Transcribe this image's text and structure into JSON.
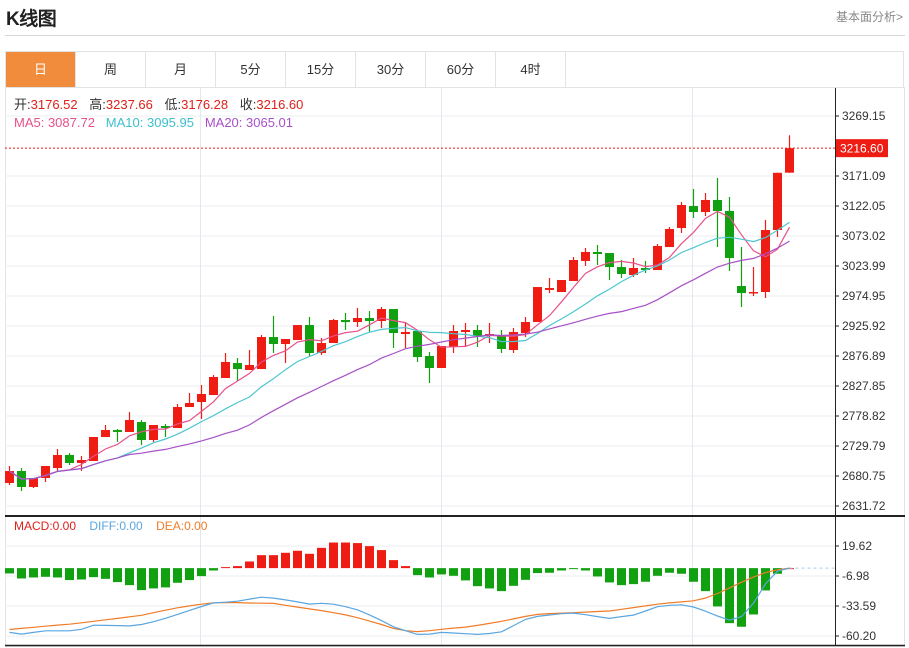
{
  "header": {
    "title": "K线图",
    "more_link": "基本面分析>"
  },
  "tabs": [
    {
      "label": "日",
      "active": true
    },
    {
      "label": "周",
      "active": false
    },
    {
      "label": "月",
      "active": false
    },
    {
      "label": "5分",
      "active": false
    },
    {
      "label": "15分",
      "active": false
    },
    {
      "label": "30分",
      "active": false
    },
    {
      "label": "60分",
      "active": false
    },
    {
      "label": "4时",
      "active": false
    }
  ],
  "info": {
    "open_label": "开:",
    "open": "3176.52",
    "high_label": "高:",
    "high": "3237.66",
    "low_label": "低:",
    "low": "3176.28",
    "close_label": "收:",
    "close": "3216.60",
    "ma5": "MA5: 3087.72",
    "ma10": "MA10: 3095.95",
    "ma20": "MA20: 3065.01"
  },
  "macd_legend": {
    "macd": "MACD:0.00",
    "diff": "DIFF:0.00",
    "dea": "DEA:0.00"
  },
  "colors": {
    "up": "#ee1c12",
    "down": "#10a010",
    "ma5": "#e8508a",
    "ma10": "#4cc6d0",
    "ma20": "#a850c8",
    "diff": "#5aa6e0",
    "dea": "#f07c28",
    "accent": "#f08c3c"
  },
  "chart_data": [
    {
      "type": "candlestick",
      "ohlc_order": [
        "open",
        "high",
        "low",
        "close"
      ],
      "ohlc": [
        [
          2669.3,
          2697.1,
          2666.0,
          2688.9
        ],
        [
          2688.9,
          2693.8,
          2656.2,
          2662.8
        ],
        [
          2662.8,
          2677.5,
          2661.1,
          2677.5
        ],
        [
          2677.5,
          2697.1,
          2670.9,
          2697.1
        ],
        [
          2693.8,
          2724.9,
          2688.9,
          2715.1
        ],
        [
          2715.1,
          2718.3,
          2698.7,
          2702.0
        ],
        [
          2702.0,
          2713.4,
          2688.9,
          2706.9
        ],
        [
          2705.3,
          2744.5,
          2705.3,
          2744.5
        ],
        [
          2744.5,
          2764.1,
          2744.5,
          2755.9
        ],
        [
          2755.9,
          2757.6,
          2736.3,
          2752.7
        ],
        [
          2752.7,
          2785.3,
          2752.7,
          2772.3
        ],
        [
          2769.0,
          2772.3,
          2731.4,
          2739.6
        ],
        [
          2739.6,
          2764.1,
          2736.3,
          2764.1
        ],
        [
          2762.5,
          2765.7,
          2744.5,
          2759.2
        ],
        [
          2759.2,
          2798.4,
          2759.2,
          2793.5
        ],
        [
          2793.5,
          2816.4,
          2793.5,
          2800.1
        ],
        [
          2801.7,
          2829.5,
          2773.9,
          2814.8
        ],
        [
          2813.1,
          2845.8,
          2813.1,
          2842.6
        ],
        [
          2840.9,
          2881.8,
          2840.9,
          2867.1
        ],
        [
          2865.4,
          2873.6,
          2836.0,
          2855.6
        ],
        [
          2854.0,
          2886.7,
          2854.0,
          2862.2
        ],
        [
          2855.6,
          2911.2,
          2855.6,
          2907.9
        ],
        [
          2907.9,
          2942.3,
          2881.8,
          2896.5
        ],
        [
          2896.5,
          2904.7,
          2865.4,
          2904.7
        ],
        [
          2903.0,
          2927.5,
          2903.0,
          2927.5
        ],
        [
          2927.5,
          2940.6,
          2876.9,
          2881.8
        ],
        [
          2881.8,
          2906.3,
          2878.5,
          2898.1
        ],
        [
          2898.1,
          2937.4,
          2898.1,
          2935.7
        ],
        [
          2935.7,
          2947.2,
          2919.4,
          2932.4
        ],
        [
          2932.4,
          2955.3,
          2924.3,
          2939.0
        ],
        [
          2939.0,
          2950.4,
          2916.1,
          2934.1
        ],
        [
          2934.1,
          2957.0,
          2922.6,
          2953.7
        ],
        [
          2953.7,
          2953.7,
          2890.0,
          2914.5
        ],
        [
          2912.8,
          2930.8,
          2890.0,
          2916.1
        ],
        [
          2917.7,
          2917.7,
          2867.1,
          2875.2
        ],
        [
          2876.9,
          2883.4,
          2832.7,
          2857.3
        ],
        [
          2857.3,
          2893.2,
          2857.3,
          2893.2
        ],
        [
          2891.6,
          2927.5,
          2881.8,
          2917.7
        ],
        [
          2916.1,
          2930.8,
          2893.2,
          2919.4
        ],
        [
          2919.4,
          2927.5,
          2891.6,
          2909.6
        ],
        [
          2909.6,
          2930.8,
          2898.1,
          2912.8
        ],
        [
          2909.6,
          2919.4,
          2881.8,
          2888.3
        ],
        [
          2886.7,
          2922.6,
          2881.8,
          2916.1
        ],
        [
          2914.5,
          2940.6,
          2907.9,
          2932.4
        ],
        [
          2932.4,
          2989.6,
          2932.4,
          2989.6
        ],
        [
          2984.8,
          3004.4,
          2979.8,
          2988.0
        ],
        [
          2981.5,
          3001.1,
          2981.5,
          3001.1
        ],
        [
          2999.5,
          3038.7,
          2999.5,
          3033.8
        ],
        [
          3032.2,
          3053.4,
          3024.0,
          3046.9
        ],
        [
          3046.9,
          3058.3,
          3025.6,
          3043.6
        ],
        [
          3045.2,
          3045.2,
          3001.1,
          3022.3
        ],
        [
          3022.3,
          3033.8,
          3004.4,
          3010.9
        ],
        [
          3009.3,
          3037.1,
          3006.0,
          3020.7
        ],
        [
          3020.7,
          3032.2,
          3012.5,
          3017.4
        ],
        [
          3017.4,
          3059.9,
          3017.4,
          3056.7
        ],
        [
          3055.0,
          3087.7,
          3055.0,
          3084.5
        ],
        [
          3086.1,
          3128.6,
          3077.9,
          3123.7
        ],
        [
          3122.0,
          3149.8,
          3102.4,
          3112.2
        ],
        [
          3112.2,
          3143.3,
          3105.7,
          3131.9
        ],
        [
          3131.9,
          3167.8,
          3055.0,
          3113.9
        ],
        [
          3113.9,
          3136.8,
          3015.8,
          3037.1
        ],
        [
          2991.3,
          3055.0,
          2957.0,
          2979.8
        ],
        [
          2979.8,
          3022.3,
          2974.9,
          2981.5
        ],
        [
          2981.5,
          3099.2,
          2971.7,
          3082.8
        ],
        [
          3082.8,
          3176.5,
          3071.4,
          3176.3
        ],
        [
          3176.52,
          3237.66,
          3176.28,
          3216.6
        ]
      ],
      "moving_averages": [
        5,
        10,
        20
      ],
      "yticks": [
        "3269.15",
        "3171.09",
        "3122.05",
        "3073.02",
        "3023.99",
        "2974.95",
        "2925.92",
        "2876.89",
        "2827.85",
        "2778.82",
        "2729.79",
        "2680.75",
        "2631.72"
      ],
      "ylim": [
        2631.72,
        3269.15
      ],
      "last_price": "3216.60",
      "grid": true
    },
    {
      "type": "macd",
      "histogram": [
        -4.7,
        -9.2,
        -8.3,
        -7.7,
        -8.3,
        -10.6,
        -10.1,
        -8.0,
        -9.5,
        -12.4,
        -15.1,
        -19.5,
        -18.0,
        -17.1,
        -13.0,
        -10.6,
        -7.1,
        -2.1,
        0.9,
        1.8,
        5.9,
        11.5,
        11.5,
        13.6,
        15.4,
        12.7,
        18.0,
        22.7,
        22.7,
        22.2,
        19.5,
        16.0,
        7.1,
        1.8,
        -6.2,
        -8.3,
        -5.6,
        -6.8,
        -10.9,
        -16.0,
        -18.0,
        -20.4,
        -15.7,
        -10.4,
        -4.4,
        -4.1,
        -2.1,
        -0.3,
        -2.1,
        -7.4,
        -12.7,
        -15.1,
        -14.2,
        -12.1,
        -6.8,
        -4.1,
        -5.0,
        -12.1,
        -20.4,
        -34.0,
        -48.8,
        -52.0,
        -41.1,
        -19.8,
        -5.0,
        0
      ],
      "diff": [
        -57,
        -58.5,
        -57,
        -55.6,
        -55.6,
        -55.6,
        -54.3,
        -50.6,
        -50.8,
        -51,
        -51.2,
        -50,
        -47.5,
        -44.5,
        -41,
        -37.5,
        -34,
        -30.8,
        -30.2,
        -29.3,
        -27.5,
        -25.8,
        -26.6,
        -28.2,
        -30,
        -31.9,
        -31.2,
        -32,
        -34.2,
        -37,
        -41.5,
        -46.5,
        -52,
        -55.5,
        -58.8,
        -58.5,
        -57,
        -57.5,
        -58.2,
        -58.8,
        -58,
        -56.5,
        -51,
        -45.5,
        -42.8,
        -41.6,
        -40.4,
        -39.9,
        -41.3,
        -43,
        -44.6,
        -43,
        -41.7,
        -38,
        -34.2,
        -33,
        -32.5,
        -34.5,
        -38.2,
        -42.5,
        -46.1,
        -43,
        -31,
        -14,
        -2.7,
        0
      ],
      "dea": [
        -54.4,
        -53.5,
        -52.5,
        -51.5,
        -50.5,
        -49.7,
        -48.5,
        -47.2,
        -45.8,
        -44.6,
        -43.2,
        -41.8,
        -39.5,
        -37.3,
        -35.2,
        -33.5,
        -32,
        -30.8,
        -30.5,
        -30.6,
        -30.9,
        -31.1,
        -31.3,
        -33,
        -34.6,
        -36.2,
        -37.7,
        -39.5,
        -41.5,
        -44,
        -47,
        -50,
        -53.5,
        -55.5,
        -56.3,
        -55.5,
        -54.3,
        -53.2,
        -52.3,
        -50.8,
        -49,
        -47.2,
        -45,
        -42.8,
        -41,
        -40.3,
        -39.9,
        -39.5,
        -39,
        -38.5,
        -38,
        -36.5,
        -35,
        -33.5,
        -32,
        -30.8,
        -30,
        -29,
        -26.5,
        -22.5,
        -17.5,
        -12.5,
        -8,
        -4,
        -1.5,
        0
      ],
      "yticks": [
        "19.62",
        "-6.98",
        "-33.59",
        "-60.20"
      ],
      "ylim": [
        -60.2,
        19.62
      ],
      "grid": true
    }
  ]
}
